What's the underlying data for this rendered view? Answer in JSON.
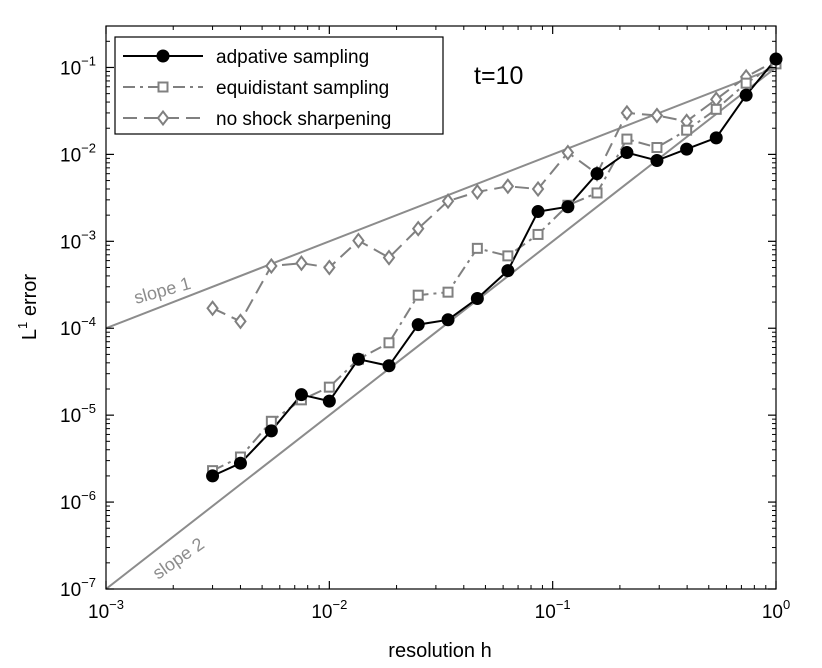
{
  "chart_data": {
    "type": "line",
    "x_scale": "log",
    "y_scale": "log",
    "xlim": [
      0.001,
      1
    ],
    "ylim": [
      1e-07,
      0.3
    ],
    "xlabel": "resolution h",
    "ylabel_base": "L",
    "ylabel_sup": "1",
    "ylabel_rest": " error",
    "x_ticks": [
      {
        "value": 0.001,
        "base": "10",
        "exp": "−3"
      },
      {
        "value": 0.01,
        "base": "10",
        "exp": "−2"
      },
      {
        "value": 0.1,
        "base": "10",
        "exp": "−1"
      },
      {
        "value": 1,
        "base": "10",
        "exp": "0"
      }
    ],
    "y_ticks": [
      {
        "value": 1e-07,
        "base": "10",
        "exp": "−7"
      },
      {
        "value": 1e-06,
        "base": "10",
        "exp": "−6"
      },
      {
        "value": 1e-05,
        "base": "10",
        "exp": "−5"
      },
      {
        "value": 0.0001,
        "base": "10",
        "exp": "−4"
      },
      {
        "value": 0.001,
        "base": "10",
        "exp": "−3"
      },
      {
        "value": 0.01,
        "base": "10",
        "exp": "−2"
      },
      {
        "value": 0.1,
        "base": "10",
        "exp": "−1"
      }
    ],
    "annotation": "t=10",
    "legend_position": "top-left",
    "reference_lines": [
      {
        "name": "slope 1",
        "label": "slope 1",
        "color": "#8c8c8c",
        "points": [
          [
            0.001,
            0.0001
          ],
          [
            1,
            0.1
          ]
        ]
      },
      {
        "name": "slope 2",
        "label": "slope 2",
        "color": "#8c8c8c",
        "points": [
          [
            0.001,
            1e-07
          ],
          [
            1,
            0.1
          ]
        ]
      }
    ],
    "series": [
      {
        "name": "adpative sampling",
        "color": "#000000",
        "dash": "",
        "marker": "filled-circle",
        "x": [
          0.003,
          0.004,
          0.0055,
          0.0075,
          0.01,
          0.0135,
          0.0185,
          0.025,
          0.034,
          0.046,
          0.063,
          0.086,
          0.117,
          0.158,
          0.215,
          0.293,
          0.398,
          0.54,
          0.735,
          1.0
        ],
        "y": [
          2e-06,
          2.8e-06,
          6.6e-06,
          1.72e-05,
          1.45e-05,
          4.4e-05,
          3.7e-05,
          0.00011,
          0.000125,
          0.00022,
          0.00046,
          0.0022,
          0.0025,
          0.006,
          0.0105,
          0.0085,
          0.0115,
          0.0155,
          0.048,
          0.125
        ]
      },
      {
        "name": "equidistant sampling",
        "color": "#808080",
        "dash": "12,5,3,5",
        "marker": "open-square",
        "x": [
          0.003,
          0.004,
          0.0055,
          0.0075,
          0.01,
          0.0135,
          0.0185,
          0.025,
          0.034,
          0.046,
          0.063,
          0.086,
          0.117,
          0.158,
          0.215,
          0.293,
          0.398,
          0.54,
          0.735,
          1.0
        ],
        "y": [
          2.3e-06,
          3.3e-06,
          8.5e-06,
          1.5e-05,
          2.1e-05,
          4.4e-05,
          6.8e-05,
          0.00024,
          0.00026,
          0.00083,
          0.00068,
          0.0012,
          0.0026,
          0.0036,
          0.015,
          0.012,
          0.019,
          0.033,
          0.066,
          0.11
        ]
      },
      {
        "name": "no shock sharpening",
        "color": "#808080",
        "dash": "14,7",
        "marker": "open-diamond",
        "x": [
          0.003,
          0.004,
          0.0055,
          0.0075,
          0.01,
          0.0135,
          0.0185,
          0.025,
          0.034,
          0.046,
          0.063,
          0.086,
          0.117,
          0.158,
          0.215,
          0.293,
          0.398,
          0.54,
          0.735,
          1.0
        ],
        "y": [
          0.00017,
          0.00012,
          0.00052,
          0.00056,
          0.0005,
          0.00102,
          0.00065,
          0.0014,
          0.0029,
          0.0037,
          0.0043,
          0.004,
          0.0105,
          0.006,
          0.03,
          0.028,
          0.024,
          0.043,
          0.078,
          0.12
        ]
      }
    ]
  }
}
